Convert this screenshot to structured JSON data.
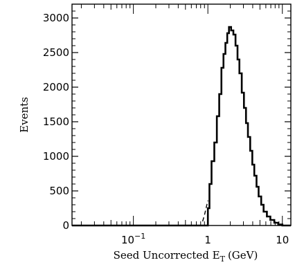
{
  "chart_data": {
    "type": "line",
    "title": "",
    "xlabel": "Seed Uncorrected E",
    "xlabel_subscript": "T",
    "xlabel_unit": "(GeV)",
    "ylabel": "Events",
    "x_scale": "log",
    "xlim": [
      0.015,
      13
    ],
    "ylim": [
      0,
      3200
    ],
    "grid": false,
    "legend": "none",
    "x_ticks": [
      {
        "value": 0.1,
        "base": "10",
        "exp": "−1"
      },
      {
        "value": 1,
        "base": "1",
        "exp": ""
      },
      {
        "value": 10,
        "base": "10",
        "exp": ""
      }
    ],
    "y_ticks": [
      0,
      500,
      1000,
      1500,
      2000,
      2500,
      3000
    ],
    "y_tick_labels": [
      "0",
      "500",
      "1000",
      "1500",
      "2000",
      "2500",
      "3000"
    ],
    "series": [
      {
        "style": "solid-step",
        "color": "#000000",
        "points": [
          [
            0.015,
            0
          ],
          [
            1.0,
            0
          ],
          [
            1.0,
            250
          ],
          [
            1.05,
            250
          ],
          [
            1.05,
            600
          ],
          [
            1.12,
            600
          ],
          [
            1.12,
            930
          ],
          [
            1.22,
            930
          ],
          [
            1.22,
            1200
          ],
          [
            1.32,
            1200
          ],
          [
            1.32,
            1580
          ],
          [
            1.42,
            1580
          ],
          [
            1.42,
            1900
          ],
          [
            1.52,
            1900
          ],
          [
            1.52,
            2280
          ],
          [
            1.62,
            2280
          ],
          [
            1.62,
            2480
          ],
          [
            1.72,
            2480
          ],
          [
            1.72,
            2640
          ],
          [
            1.82,
            2640
          ],
          [
            1.82,
            2780
          ],
          [
            1.92,
            2780
          ],
          [
            1.92,
            2870
          ],
          [
            2.05,
            2870
          ],
          [
            2.05,
            2820
          ],
          [
            2.2,
            2820
          ],
          [
            2.2,
            2760
          ],
          [
            2.35,
            2760
          ],
          [
            2.35,
            2600
          ],
          [
            2.5,
            2600
          ],
          [
            2.5,
            2400
          ],
          [
            2.65,
            2400
          ],
          [
            2.65,
            2200
          ],
          [
            2.85,
            2200
          ],
          [
            2.85,
            1920
          ],
          [
            3.05,
            1920
          ],
          [
            3.05,
            1700
          ],
          [
            3.25,
            1700
          ],
          [
            3.25,
            1480
          ],
          [
            3.45,
            1480
          ],
          [
            3.45,
            1280
          ],
          [
            3.7,
            1280
          ],
          [
            3.7,
            1080
          ],
          [
            3.95,
            1080
          ],
          [
            3.95,
            880
          ],
          [
            4.2,
            880
          ],
          [
            4.2,
            720
          ],
          [
            4.5,
            720
          ],
          [
            4.5,
            560
          ],
          [
            4.8,
            560
          ],
          [
            4.8,
            420
          ],
          [
            5.2,
            420
          ],
          [
            5.2,
            300
          ],
          [
            5.6,
            300
          ],
          [
            5.6,
            200
          ],
          [
            6.2,
            200
          ],
          [
            6.2,
            130
          ],
          [
            6.9,
            130
          ],
          [
            6.9,
            80
          ],
          [
            7.8,
            80
          ],
          [
            7.8,
            40
          ],
          [
            8.8,
            40
          ],
          [
            8.8,
            15
          ],
          [
            10.0,
            15
          ],
          [
            10.0,
            0
          ],
          [
            13,
            0
          ]
        ]
      },
      {
        "style": "dashed",
        "color": "#000000",
        "points": [
          [
            0.85,
            60
          ],
          [
            0.9,
            150
          ],
          [
            0.95,
            260
          ],
          [
            1.0,
            360
          ]
        ]
      }
    ]
  }
}
